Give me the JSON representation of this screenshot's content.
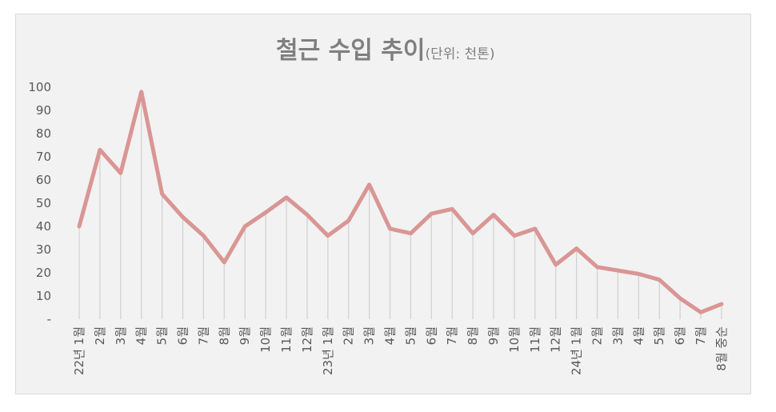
{
  "chart_data": {
    "type": "line",
    "title": "철근 수입 추이",
    "subtitle": "(단위: 천톤)",
    "y_ticks": [
      "-",
      "10",
      "20",
      "30",
      "40",
      "50",
      "60",
      "70",
      "80",
      "90",
      "100"
    ],
    "ylim": [
      0,
      100
    ],
    "categories": [
      "22년 1월",
      "2월",
      "3월",
      "4월",
      "5월",
      "6월",
      "7월",
      "8월",
      "9월",
      "10월",
      "11월",
      "12월",
      "23년 1월",
      "2월",
      "3월",
      "4월",
      "5월",
      "6월",
      "7월",
      "8월",
      "9월",
      "10월",
      "11월",
      "12월",
      "24년 1월",
      "2월",
      "3월",
      "4월",
      "5월",
      "6월",
      "7월",
      "8월 중순"
    ],
    "series": [
      {
        "values": [
          40,
          73,
          63,
          98,
          54,
          44,
          36,
          24.5,
          40,
          46,
          52.5,
          45,
          36,
          42.5,
          58,
          39,
          37,
          45.5,
          47.5,
          37,
          45,
          36,
          39,
          23.5,
          30.5,
          22.5,
          21,
          19.5,
          17,
          9,
          3,
          6.5
        ]
      }
    ],
    "grid": false,
    "drop_lines": true,
    "colors": {
      "line": "#d99694",
      "background": "#f2f2f2",
      "drop_line": "#d0d0d0"
    }
  }
}
